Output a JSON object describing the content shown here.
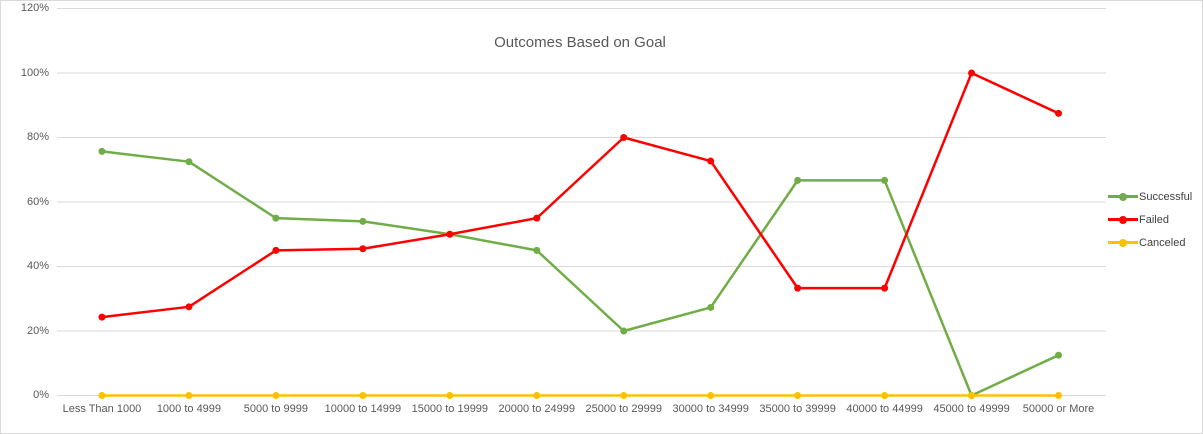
{
  "chart_data": {
    "type": "line",
    "title": "Outcomes Based on Goal",
    "categories": [
      "Less Than 1000",
      "1000 to 4999",
      "5000 to 9999",
      "10000 to 14999",
      "15000 to 19999",
      "20000 to 24999",
      "25000 to 29999",
      "30000 to 34999",
      "35000 to 39999",
      "40000 to 44999",
      "45000 to 49999",
      "50000 or More"
    ],
    "series": [
      {
        "name": "Successful",
        "color": "#70ad47",
        "values": [
          75.7,
          72.5,
          55,
          54,
          50,
          45,
          20,
          27.3,
          66.7,
          66.7,
          0,
          12.5
        ]
      },
      {
        "name": "Failed",
        "color": "#ff0000",
        "values": [
          24.3,
          27.5,
          45,
          45.5,
          50,
          55,
          80,
          72.7,
          33.3,
          33.3,
          100,
          87.5
        ]
      },
      {
        "name": "Canceled",
        "color": "#ffc000",
        "values": [
          0,
          0,
          0,
          0,
          0,
          0,
          0,
          0,
          0,
          0,
          0,
          0
        ]
      }
    ],
    "ylim": [
      0,
      120
    ],
    "ytick_step": 20,
    "ytick_labels": [
      "0%",
      "20%",
      "40%",
      "60%",
      "80%",
      "100%",
      "120%"
    ],
    "grid": true,
    "gridline_color": "#d9d9d9",
    "axis_label_color": "#595959",
    "legend_text_color": "#404040",
    "legend_position": "right",
    "marker": "circle"
  }
}
